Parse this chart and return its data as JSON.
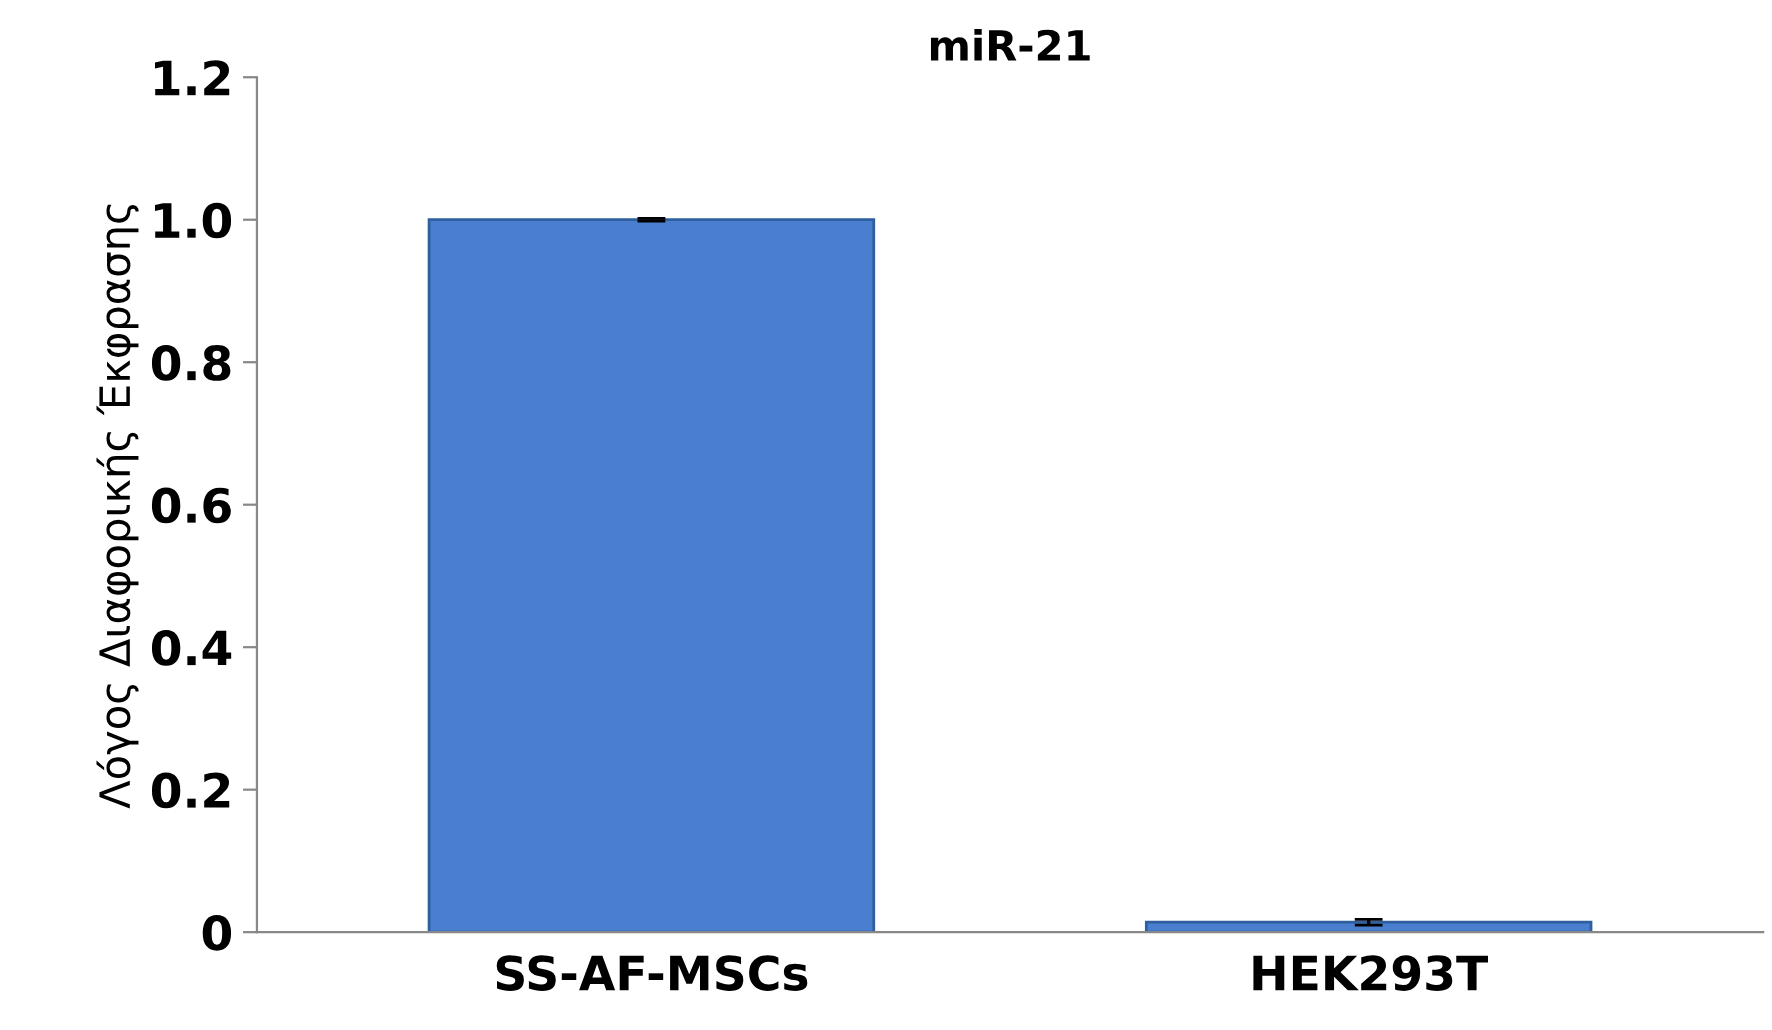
{
  "chart_data": {
    "type": "bar",
    "title": "miR-21",
    "ylabel": "Λόγος Διαφορικής Έκφρασης",
    "categories": [
      "SS-AF-MSCs",
      "HEK293T"
    ],
    "values": [
      1.0,
      0.014
    ],
    "errors": [
      0.002,
      0.004
    ],
    "color": "#4a7fd0",
    "ylim": [
      0,
      1.2
    ],
    "yticks": [
      {
        "value": 0,
        "label": "0"
      },
      {
        "value": 0.2,
        "label": "0.2"
      },
      {
        "value": 0.4,
        "label": "0.4"
      },
      {
        "value": 0.6,
        "label": "0.6"
      },
      {
        "value": 0.8,
        "label": "0.8"
      },
      {
        "value": 1.0,
        "label": "1.0"
      },
      {
        "value": 1.2,
        "label": "1.2"
      }
    ],
    "grid": false,
    "legend": false
  }
}
